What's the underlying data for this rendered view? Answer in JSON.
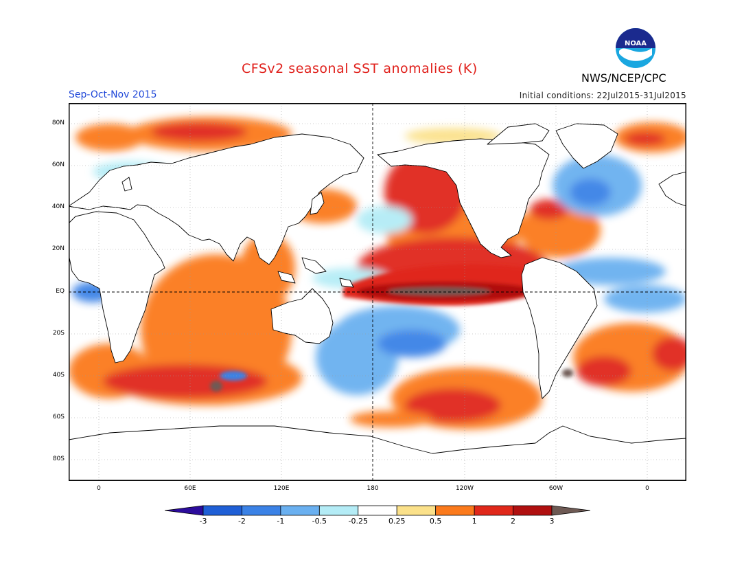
{
  "header": {
    "title": "CFSv2 seasonal SST anomalies (K)",
    "agency": "NWS/NCEP/CPC",
    "logo_text": "NOAA",
    "season": "Sep-Oct-Nov 2015",
    "initial_conditions": "Initial conditions: 22Jul2015-31Jul2015"
  },
  "colors": {
    "title": "#e0201b",
    "season": "#1f47d8",
    "land": "#ffffff",
    "coast": "#000000"
  },
  "map": {
    "lat_labels": [
      "80N",
      "60N",
      "40N",
      "20N",
      "EQ",
      "20S",
      "40S",
      "60S",
      "80S"
    ],
    "lon_labels": [
      "0",
      "60E",
      "120E",
      "180",
      "120W",
      "60W",
      "0"
    ]
  },
  "colorbar": {
    "labels": [
      "-3",
      "-2",
      "-1",
      "-0.5",
      "-0.25",
      "0.25",
      "0.5",
      "1",
      "2",
      "3"
    ],
    "colors": [
      "#2c0c9c",
      "#1f5fd6",
      "#3b82e6",
      "#6ab0f0",
      "#b4ecf6",
      "#ffffff",
      "#fbe18a",
      "#fb7a1c",
      "#e0281a",
      "#b01010",
      "#6e5a54"
    ]
  }
}
